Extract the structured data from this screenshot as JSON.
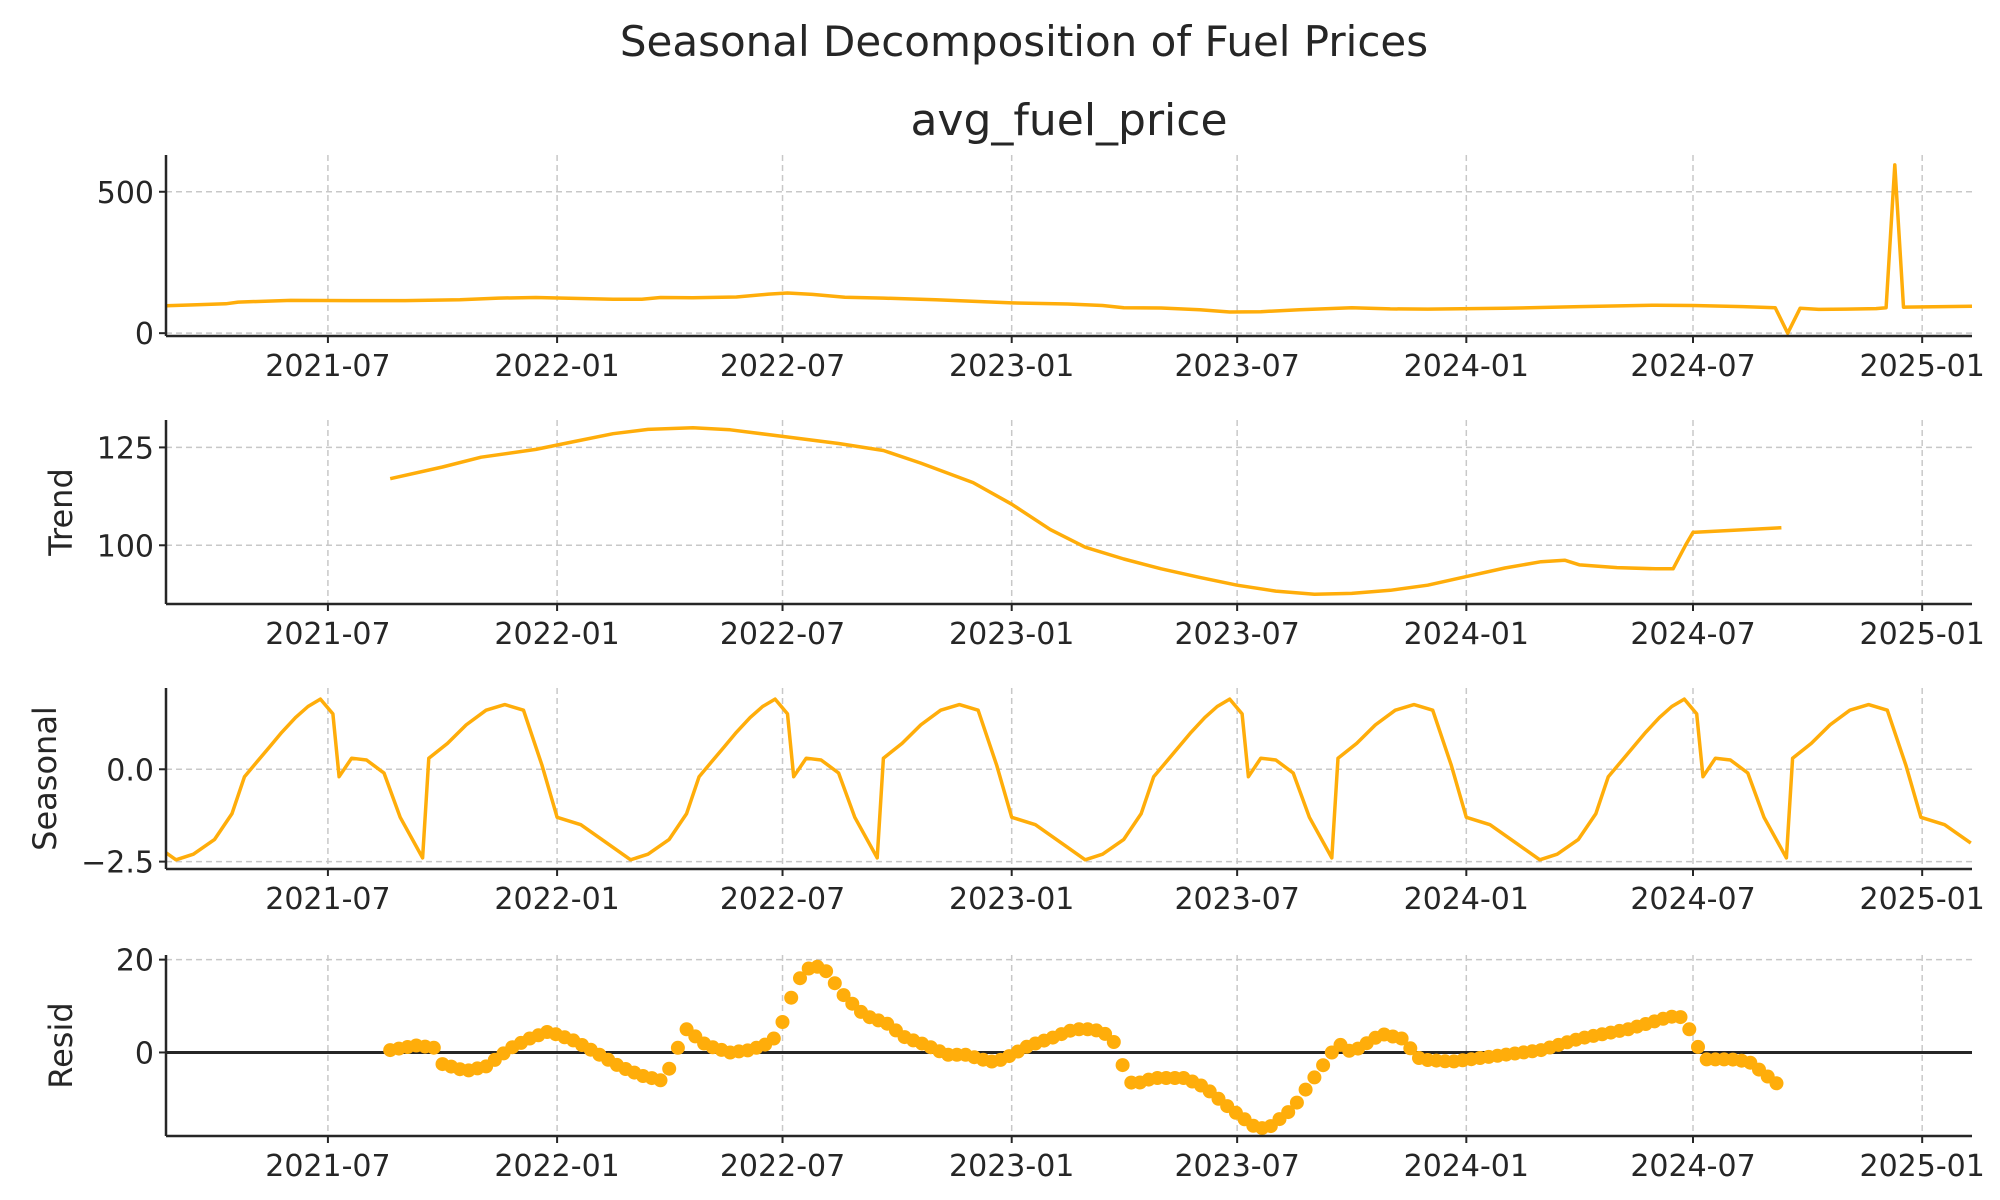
{
  "figure": {
    "suptitle": "Seasonal Decomposition of Fuel Prices",
    "line_color": "#ffad0a",
    "zero_line_color": "#262626"
  },
  "chart_data": [
    {
      "type": "line",
      "title": "avg_fuel_price",
      "ylabel": "",
      "xlim": [
        "2021-02-21",
        "2025-02-10"
      ],
      "ylim": [
        -10,
        630
      ],
      "yticks": [
        {
          "value": 0,
          "label": "0"
        },
        {
          "value": 500,
          "label": "500"
        }
      ],
      "xticks": [
        {
          "date": "2021-07-01",
          "label": "2021-07"
        },
        {
          "date": "2022-01-01",
          "label": "2022-01"
        },
        {
          "date": "2022-07-01",
          "label": "2022-07"
        },
        {
          "date": "2023-01-01",
          "label": "2023-01"
        },
        {
          "date": "2023-07-01",
          "label": "2023-07"
        },
        {
          "date": "2024-01-01",
          "label": "2024-01"
        },
        {
          "date": "2024-07-01",
          "label": "2024-07"
        },
        {
          "date": "2025-01-01",
          "label": "2025-01"
        }
      ],
      "grid": true,
      "series": [
        {
          "points": [
            [
              "2021-02-21",
              97
            ],
            [
              "2021-03-15",
              100
            ],
            [
              "2021-04-10",
              104
            ],
            [
              "2021-04-20",
              110
            ],
            [
              "2021-05-20",
              114
            ],
            [
              "2021-06-01",
              116
            ],
            [
              "2021-07-20",
              115
            ],
            [
              "2021-09-01",
              115
            ],
            [
              "2021-10-15",
              118
            ],
            [
              "2021-11-15",
              124
            ],
            [
              "2021-12-15",
              126
            ],
            [
              "2022-01-15",
              123
            ],
            [
              "2022-02-15",
              120
            ],
            [
              "2022-03-10",
              120
            ],
            [
              "2022-03-25",
              126
            ],
            [
              "2022-04-20",
              125
            ],
            [
              "2022-05-25",
              128
            ],
            [
              "2022-06-20",
              138
            ],
            [
              "2022-07-05",
              142
            ],
            [
              "2022-07-25",
              137
            ],
            [
              "2022-08-20",
              127
            ],
            [
              "2022-09-20",
              124
            ],
            [
              "2022-11-01",
              118
            ],
            [
              "2023-01-01",
              107
            ],
            [
              "2023-02-15",
              103
            ],
            [
              "2023-03-15",
              98
            ],
            [
              "2023-04-01",
              90
            ],
            [
              "2023-05-01",
              89
            ],
            [
              "2023-06-01",
              83
            ],
            [
              "2023-06-25",
              75
            ],
            [
              "2023-07-20",
              76
            ],
            [
              "2023-08-20",
              83
            ],
            [
              "2023-10-01",
              90
            ],
            [
              "2023-11-01",
              86
            ],
            [
              "2023-12-01",
              85
            ],
            [
              "2024-02-01",
              88
            ],
            [
              "2024-04-01",
              94
            ],
            [
              "2024-06-01",
              99
            ],
            [
              "2024-07-01",
              98
            ],
            [
              "2024-08-10",
              94
            ],
            [
              "2024-09-05",
              90
            ],
            [
              "2024-09-15",
              0
            ],
            [
              "2024-09-25",
              88
            ],
            [
              "2024-10-10",
              84
            ],
            [
              "2024-11-01",
              85
            ],
            [
              "2024-11-25",
              87
            ],
            [
              "2024-12-03",
              90
            ],
            [
              "2024-12-10",
              595
            ],
            [
              "2024-12-17",
              92
            ],
            [
              "2025-02-10",
              95
            ]
          ]
        }
      ]
    },
    {
      "type": "line",
      "title": "",
      "ylabel": "Trend",
      "xlim": [
        "2021-02-21",
        "2025-02-10"
      ],
      "ylim": [
        85,
        132
      ],
      "yticks": [
        {
          "value": 100,
          "label": "100"
        },
        {
          "value": 125,
          "label": "125"
        }
      ],
      "xticks": [
        {
          "date": "2021-07-01",
          "label": "2021-07"
        },
        {
          "date": "2022-01-01",
          "label": "2022-01"
        },
        {
          "date": "2022-07-01",
          "label": "2022-07"
        },
        {
          "date": "2023-01-01",
          "label": "2023-01"
        },
        {
          "date": "2023-07-01",
          "label": "2023-07"
        },
        {
          "date": "2024-01-01",
          "label": "2024-01"
        },
        {
          "date": "2024-07-01",
          "label": "2024-07"
        },
        {
          "date": "2025-01-01",
          "label": "2025-01"
        }
      ],
      "grid": true,
      "series": [
        {
          "points": [
            [
              "2021-08-20",
              117
            ],
            [
              "2021-10-01",
              120
            ],
            [
              "2021-11-01",
              122.5
            ],
            [
              "2021-12-15",
              124.5
            ],
            [
              "2022-01-15",
              126.5
            ],
            [
              "2022-02-15",
              128.5
            ],
            [
              "2022-03-15",
              129.6
            ],
            [
              "2022-04-20",
              130
            ],
            [
              "2022-05-20",
              129.5
            ],
            [
              "2022-07-01",
              127.8
            ],
            [
              "2022-08-15",
              126
            ],
            [
              "2022-09-20",
              124.2
            ],
            [
              "2022-10-20",
              121
            ],
            [
              "2022-12-01",
              116
            ],
            [
              "2023-01-01",
              110.5
            ],
            [
              "2023-02-01",
              104
            ],
            [
              "2023-03-01",
              99.5
            ],
            [
              "2023-04-01",
              96.5
            ],
            [
              "2023-05-01",
              94
            ],
            [
              "2023-06-01",
              91.8
            ],
            [
              "2023-07-01",
              89.8
            ],
            [
              "2023-08-01",
              88.3
            ],
            [
              "2023-09-01",
              87.5
            ],
            [
              "2023-10-01",
              87.7
            ],
            [
              "2023-11-01",
              88.5
            ],
            [
              "2023-12-01",
              89.8
            ],
            [
              "2024-01-01",
              92
            ],
            [
              "2024-02-01",
              94.2
            ],
            [
              "2024-03-01",
              95.8
            ],
            [
              "2024-03-20",
              96.2
            ],
            [
              "2024-04-01",
              95
            ],
            [
              "2024-05-01",
              94.3
            ],
            [
              "2024-06-01",
              94
            ],
            [
              "2024-06-15",
              94
            ],
            [
              "2024-06-25",
              100
            ],
            [
              "2024-07-01",
              103.3
            ],
            [
              "2024-08-01",
              103.8
            ],
            [
              "2024-09-10",
              104.5
            ]
          ]
        }
      ]
    },
    {
      "type": "line",
      "title": "",
      "ylabel": "Seasonal",
      "xlim": [
        "2021-02-21",
        "2025-02-10"
      ],
      "ylim": [
        -2.7,
        2.2
      ],
      "yticks": [
        {
          "value": -2.5,
          "label": "−2.5"
        },
        {
          "value": 0,
          "label": "0.0"
        }
      ],
      "xticks": [
        {
          "date": "2021-07-01",
          "label": "2021-07"
        },
        {
          "date": "2022-01-01",
          "label": "2022-01"
        },
        {
          "date": "2022-07-01",
          "label": "2022-07"
        },
        {
          "date": "2023-01-01",
          "label": "2023-01"
        },
        {
          "date": "2023-07-01",
          "label": "2023-07"
        },
        {
          "date": "2024-01-01",
          "label": "2024-01"
        },
        {
          "date": "2024-07-01",
          "label": "2024-07"
        },
        {
          "date": "2025-01-01",
          "label": "2025-01"
        }
      ],
      "grid": true,
      "series": [
        {
          "period_start": "2021-01-01",
          "period_end": "2022-01-01",
          "cycle_range": [
            "2021-01-01",
            "2025-02-10"
          ],
          "points": [
            [
              "2021-01-01",
              -1.3
            ],
            [
              "2021-01-20",
              -1.5
            ],
            [
              "2021-02-10",
              -2.0
            ],
            [
              "2021-03-01",
              -2.45
            ],
            [
              "2021-03-15",
              -2.3
            ],
            [
              "2021-04-01",
              -1.9
            ],
            [
              "2021-04-15",
              -1.2
            ],
            [
              "2021-04-25",
              -0.2
            ],
            [
              "2021-05-05",
              0.2
            ],
            [
              "2021-05-15",
              0.6
            ],
            [
              "2021-05-25",
              1.0
            ],
            [
              "2021-06-05",
              1.4
            ],
            [
              "2021-06-15",
              1.7
            ],
            [
              "2021-06-25",
              1.9
            ],
            [
              "2021-07-05",
              1.5
            ],
            [
              "2021-07-10",
              -0.2
            ],
            [
              "2021-07-20",
              0.3
            ],
            [
              "2021-08-01",
              0.25
            ],
            [
              "2021-08-15",
              -0.1
            ],
            [
              "2021-08-28",
              -1.3
            ],
            [
              "2021-09-15",
              -2.4
            ],
            [
              "2021-09-20",
              0.3
            ],
            [
              "2021-10-05",
              0.7
            ],
            [
              "2021-10-20",
              1.2
            ],
            [
              "2021-11-05",
              1.6
            ],
            [
              "2021-11-20",
              1.75
            ],
            [
              "2021-12-05",
              1.6
            ],
            [
              "2021-12-20",
              0.1
            ],
            [
              "2022-01-01",
              -1.3
            ]
          ]
        }
      ]
    },
    {
      "type": "scatter",
      "title": "",
      "ylabel": "Resid",
      "xlim": [
        "2021-02-21",
        "2025-02-10"
      ],
      "ylim": [
        -18,
        21
      ],
      "yticks": [
        {
          "value": 0,
          "label": "0"
        },
        {
          "value": 20,
          "label": "20"
        }
      ],
      "xticks": [
        {
          "date": "2021-07-01",
          "label": "2021-07"
        },
        {
          "date": "2022-01-01",
          "label": "2022-01"
        },
        {
          "date": "2022-07-01",
          "label": "2022-07"
        },
        {
          "date": "2023-01-01",
          "label": "2023-01"
        },
        {
          "date": "2023-07-01",
          "label": "2023-07"
        },
        {
          "date": "2024-01-01",
          "label": "2024-01"
        },
        {
          "date": "2024-07-01",
          "label": "2024-07"
        },
        {
          "date": "2025-01-01",
          "label": "2025-01"
        }
      ],
      "grid": true,
      "zero_line": true,
      "series": [
        {
          "start": "2021-08-20",
          "end": "2024-09-10",
          "step_days": 7,
          "knots": [
            [
              "2021-08-20",
              0.5
            ],
            [
              "2021-09-10",
              1.5
            ],
            [
              "2021-09-25",
              1.0
            ],
            [
              "2021-10-01",
              -2.5
            ],
            [
              "2021-10-20",
              -4.0
            ],
            [
              "2021-11-05",
              -3.0
            ],
            [
              "2021-11-25",
              1.0
            ],
            [
              "2021-12-10",
              3.0
            ],
            [
              "2021-12-25",
              4.5
            ],
            [
              "2022-01-15",
              2.5
            ],
            [
              "2022-02-01",
              0.0
            ],
            [
              "2022-02-20",
              -3.0
            ],
            [
              "2022-03-10",
              -5.0
            ],
            [
              "2022-03-25",
              -6.0
            ],
            [
              "2022-04-01",
              -3.5
            ],
            [
              "2022-04-08",
              1.0
            ],
            [
              "2022-04-15",
              5.0
            ],
            [
              "2022-05-01",
              1.5
            ],
            [
              "2022-05-20",
              0.0
            ],
            [
              "2022-06-05",
              0.5
            ],
            [
              "2022-06-20",
              2.0
            ],
            [
              "2022-06-28",
              4.0
            ],
            [
              "2022-07-05",
              10.0
            ],
            [
              "2022-07-15",
              16.0
            ],
            [
              "2022-07-25",
              19.0
            ],
            [
              "2022-08-05",
              17.5
            ],
            [
              "2022-08-20",
              12.0
            ],
            [
              "2022-09-05",
              8.0
            ],
            [
              "2022-09-25",
              6.0
            ],
            [
              "2022-10-05",
              3.5
            ],
            [
              "2022-10-25",
              1.5
            ],
            [
              "2022-11-10",
              -0.5
            ],
            [
              "2022-11-25",
              -0.5
            ],
            [
              "2022-12-15",
              -2.0
            ],
            [
              "2022-12-25",
              -1.5
            ],
            [
              "2023-01-15",
              1.5
            ],
            [
              "2023-02-01",
              3.0
            ],
            [
              "2023-02-20",
              5.0
            ],
            [
              "2023-03-05",
              5.0
            ],
            [
              "2023-03-15",
              4.5
            ],
            [
              "2023-03-25",
              2.0
            ],
            [
              "2023-04-01",
              -3.5
            ],
            [
              "2023-04-08",
              -7.0
            ],
            [
              "2023-04-25",
              -5.5
            ],
            [
              "2023-05-20",
              -5.5
            ],
            [
              "2023-06-05",
              -7.5
            ],
            [
              "2023-06-25",
              -12.0
            ],
            [
              "2023-07-15",
              -16.0
            ],
            [
              "2023-07-25",
              -16.5
            ],
            [
              "2023-08-15",
              -12.0
            ],
            [
              "2023-08-25",
              -8.0
            ],
            [
              "2023-09-10",
              -2.0
            ],
            [
              "2023-09-20",
              2.0
            ],
            [
              "2023-10-01",
              0.0
            ],
            [
              "2023-10-25",
              4.0
            ],
            [
              "2023-11-10",
              3.0
            ],
            [
              "2023-11-25",
              -1.5
            ],
            [
              "2023-12-20",
              -2.0
            ],
            [
              "2024-02-01",
              -0.5
            ],
            [
              "2024-03-01",
              0.5
            ],
            [
              "2024-04-01",
              3.0
            ],
            [
              "2024-05-10",
              5.0
            ],
            [
              "2024-06-10",
              7.5
            ],
            [
              "2024-06-20",
              8.0
            ],
            [
              "2024-06-28",
              5.0
            ],
            [
              "2024-07-10",
              -1.5
            ],
            [
              "2024-08-01",
              -1.5
            ],
            [
              "2024-08-15",
              -2.0
            ],
            [
              "2024-09-10",
              -7.5
            ]
          ]
        }
      ]
    }
  ]
}
